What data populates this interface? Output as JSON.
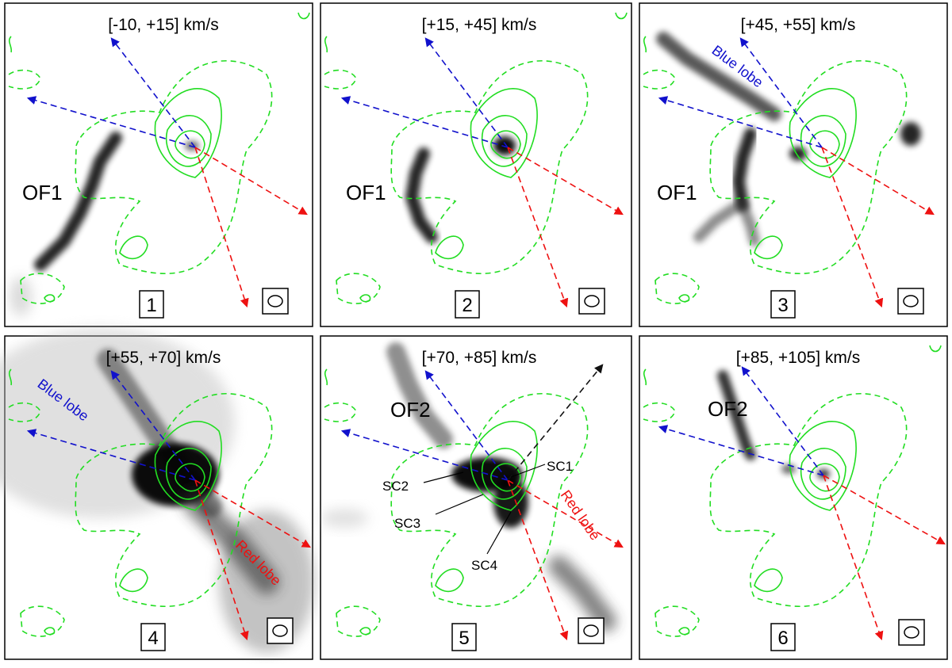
{
  "panels": [
    {
      "number": "1",
      "velocity_range": "[-10, +15] km/s",
      "labels": [
        "OF1"
      ],
      "lobes": []
    },
    {
      "number": "2",
      "velocity_range": "[+15, +45] km/s",
      "labels": [
        "OF1"
      ],
      "lobes": []
    },
    {
      "number": "3",
      "velocity_range": "[+45, +55] km/s",
      "labels": [
        "OF1"
      ],
      "lobes": [
        "Blue lobe"
      ]
    },
    {
      "number": "4",
      "velocity_range": "[+55, +70] km/s",
      "labels": [],
      "lobes": [
        "Blue lobe",
        "Red lobe"
      ]
    },
    {
      "number": "5",
      "velocity_range": "[+70, +85] km/s",
      "labels": [
        "OF2",
        "SC1",
        "SC2",
        "SC3",
        "SC4"
      ],
      "lobes": [
        "Red lobe"
      ]
    },
    {
      "number": "6",
      "velocity_range": "[+85, +105] km/s",
      "labels": [
        "OF2"
      ],
      "lobes": []
    }
  ],
  "colors": {
    "contour": "#22dd22",
    "blue_arrow": "#1111cc",
    "red_arrow": "#ee1111",
    "black_arrow": "#111111",
    "emission": "#000000"
  },
  "icons": {
    "beam": "beam-ellipse-icon"
  }
}
